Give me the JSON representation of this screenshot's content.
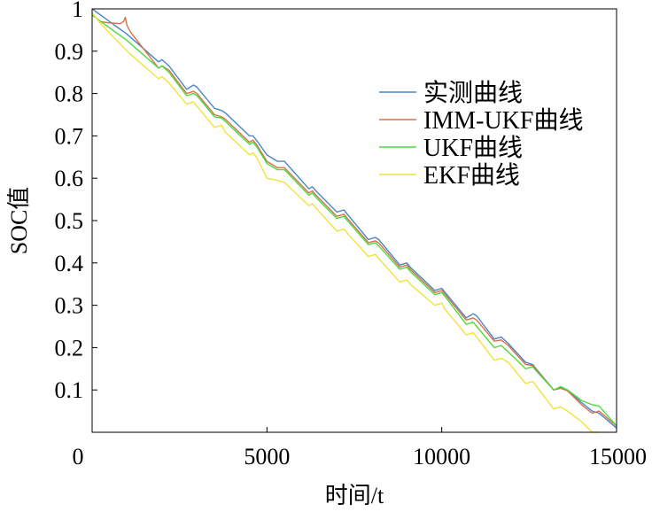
{
  "chart_data": {
    "type": "line",
    "title": "",
    "xlabel": "时间/t",
    "ylabel": "SOC值",
    "xlim": [
      0,
      15000
    ],
    "ylim": [
      0,
      1
    ],
    "grid": false,
    "legend_position": "right",
    "x_ticks": [
      0,
      5000,
      10000,
      15000
    ],
    "x_tick_labels": [
      "0",
      "5000",
      "10000",
      "15000"
    ],
    "y_ticks": [
      0.1,
      0.2,
      0.3,
      0.4,
      0.5,
      0.6,
      0.7,
      0.8,
      0.9,
      1
    ],
    "y_tick_labels": [
      "0.1",
      "0.2",
      "0.3",
      "0.4",
      "0.5",
      "0.6",
      "0.7",
      "0.8",
      "0.9",
      "1"
    ],
    "series": [
      {
        "name": "实测曲线",
        "color": "#4a86c8",
        "x": [
          0,
          1000,
          1900,
          2000,
          2200,
          2700,
          2900,
          3000,
          3500,
          3700,
          3800,
          4500,
          4600,
          4700,
          5000,
          5300,
          5500,
          6200,
          6300,
          6400,
          7000,
          7200,
          7300,
          7900,
          8100,
          8200,
          8800,
          9000,
          9100,
          9800,
          10000,
          10100,
          10700,
          10900,
          11000,
          11500,
          11700,
          11900,
          12400,
          12600,
          12700,
          13200,
          13400,
          13600,
          14000,
          14300,
          14500,
          15000
        ],
        "y": [
          1.0,
          0.94,
          0.875,
          0.88,
          0.865,
          0.81,
          0.82,
          0.815,
          0.765,
          0.76,
          0.755,
          0.7,
          0.7,
          0.69,
          0.655,
          0.64,
          0.64,
          0.575,
          0.58,
          0.57,
          0.52,
          0.525,
          0.515,
          0.455,
          0.46,
          0.455,
          0.395,
          0.4,
          0.39,
          0.335,
          0.34,
          0.33,
          0.27,
          0.28,
          0.275,
          0.22,
          0.225,
          0.21,
          0.165,
          0.16,
          0.15,
          0.1,
          0.105,
          0.1,
          0.07,
          0.05,
          0.045,
          0.01
        ]
      },
      {
        "name": "IMM-UKF曲线",
        "color": "#d9704a",
        "x": [
          0,
          200,
          500,
          800,
          900,
          950,
          1000,
          1100,
          1900,
          2000,
          2200,
          2700,
          2900,
          3000,
          3500,
          3700,
          3800,
          4500,
          4600,
          4700,
          5000,
          5300,
          5500,
          6200,
          6300,
          6400,
          7000,
          7200,
          7300,
          7900,
          8100,
          8200,
          8800,
          9000,
          9100,
          9800,
          10000,
          10100,
          10700,
          10900,
          11000,
          11500,
          11700,
          11900,
          12400,
          12600,
          12700,
          13200,
          13400,
          13600,
          14000,
          14300,
          14500,
          15000
        ],
        "y": [
          0.99,
          0.97,
          0.967,
          0.965,
          0.97,
          0.98,
          0.96,
          0.945,
          0.86,
          0.865,
          0.855,
          0.8,
          0.805,
          0.8,
          0.75,
          0.745,
          0.74,
          0.685,
          0.69,
          0.68,
          0.64,
          0.625,
          0.625,
          0.565,
          0.57,
          0.56,
          0.51,
          0.515,
          0.505,
          0.448,
          0.452,
          0.447,
          0.39,
          0.395,
          0.385,
          0.33,
          0.335,
          0.325,
          0.265,
          0.27,
          0.265,
          0.215,
          0.218,
          0.205,
          0.16,
          0.158,
          0.148,
          0.1,
          0.104,
          0.098,
          0.065,
          0.045,
          0.05,
          0.015
        ]
      },
      {
        "name": "UKF曲线",
        "color": "#4ddc3c",
        "x": [
          0,
          1000,
          1900,
          2000,
          2200,
          2700,
          2900,
          3000,
          3500,
          3700,
          3800,
          4500,
          4600,
          4700,
          5000,
          5300,
          5500,
          6200,
          6300,
          6400,
          7000,
          7200,
          7300,
          7900,
          8100,
          8200,
          8800,
          9000,
          9100,
          9800,
          10000,
          10100,
          10700,
          10900,
          11000,
          11500,
          11700,
          11900,
          12400,
          12600,
          12700,
          13200,
          13400,
          13600,
          14000,
          14300,
          14500,
          15000
        ],
        "y": [
          0.985,
          0.925,
          0.86,
          0.865,
          0.85,
          0.795,
          0.8,
          0.795,
          0.745,
          0.742,
          0.735,
          0.68,
          0.685,
          0.675,
          0.635,
          0.62,
          0.62,
          0.56,
          0.565,
          0.555,
          0.505,
          0.51,
          0.5,
          0.443,
          0.448,
          0.44,
          0.385,
          0.39,
          0.38,
          0.325,
          0.33,
          0.32,
          0.255,
          0.26,
          0.25,
          0.2,
          0.205,
          0.19,
          0.15,
          0.155,
          0.145,
          0.1,
          0.108,
          0.1,
          0.075,
          0.065,
          0.062,
          0.015
        ]
      },
      {
        "name": "EKF曲线",
        "color": "#f2e23c",
        "x": [
          0,
          300,
          1000,
          1900,
          2000,
          2200,
          2700,
          2900,
          3000,
          3500,
          3700,
          3800,
          4500,
          4600,
          4700,
          5000,
          5300,
          5500,
          6200,
          6300,
          6400,
          7000,
          7200,
          7300,
          7900,
          8100,
          8200,
          8800,
          9000,
          9100,
          9800,
          10000,
          10100,
          10700,
          10900,
          11000,
          11500,
          11700,
          11900,
          12400,
          12600,
          12700,
          13200,
          13400,
          13600,
          14000,
          14300,
          14500
        ],
        "y": [
          0.99,
          0.96,
          0.9,
          0.835,
          0.84,
          0.825,
          0.775,
          0.78,
          0.77,
          0.72,
          0.725,
          0.71,
          0.655,
          0.66,
          0.65,
          0.6,
          0.595,
          0.59,
          0.535,
          0.54,
          0.53,
          0.475,
          0.48,
          0.47,
          0.415,
          0.42,
          0.41,
          0.355,
          0.36,
          0.35,
          0.3,
          0.305,
          0.29,
          0.23,
          0.235,
          0.225,
          0.17,
          0.175,
          0.165,
          0.115,
          0.12,
          0.11,
          0.055,
          0.06,
          0.05,
          0.025,
          0.0,
          0.0
        ]
      }
    ]
  }
}
